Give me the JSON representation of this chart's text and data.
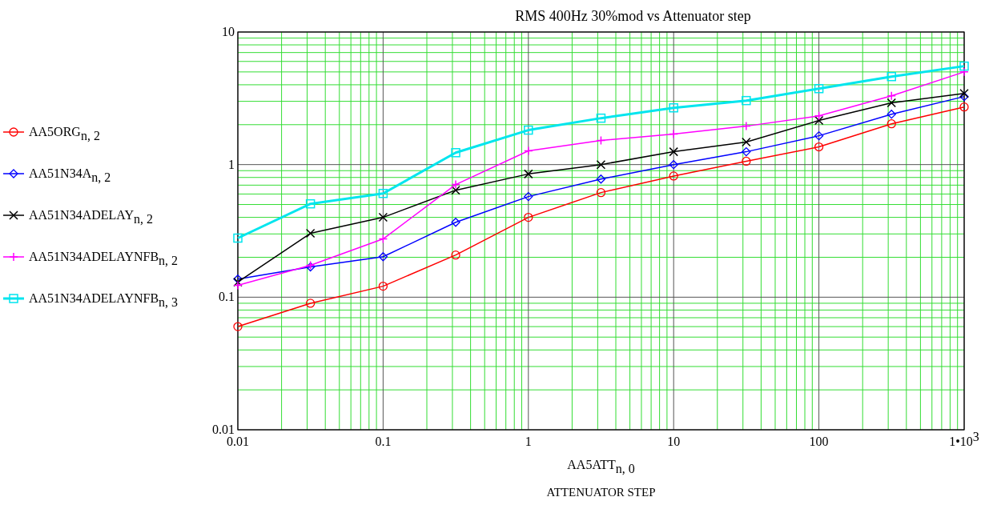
{
  "chart_data": {
    "type": "line",
    "title": "RMS 400Hz 30%mod vs Attenuator step",
    "xlabel": "AA5ATT$_{n, 0}$\nATTENUATOR STEP",
    "log": "xy",
    "grid": true,
    "legend": "left",
    "x": [
      0.01,
      0.0316,
      0.1,
      0.316,
      1,
      3.16,
      10,
      31.6,
      100,
      316,
      1000
    ],
    "xlim": [
      0.01,
      1000
    ],
    "xticks": [
      0.01,
      {
        "value": 0.02,
        "label": null
      },
      {
        "value": 0.03,
        "label": null
      },
      {
        "value": 0.04,
        "label": null
      },
      {
        "value": 0.05,
        "label": null
      },
      {
        "value": 0.06,
        "label": null
      },
      {
        "value": 0.07,
        "label": null
      },
      {
        "value": 0.08,
        "label": null
      },
      {
        "value": 0.09,
        "label": null
      },
      0.1,
      {
        "value": 0.2,
        "label": null
      },
      {
        "value": 0.3,
        "label": null
      },
      {
        "value": 0.4,
        "label": null
      },
      {
        "value": 0.5,
        "label": null
      },
      {
        "value": 0.6,
        "label": null
      },
      {
        "value": 0.7,
        "label": null
      },
      {
        "value": 0.8,
        "label": null
      },
      {
        "value": 0.9,
        "label": null
      },
      1,
      {
        "value": 2,
        "label": null
      },
      {
        "value": 3,
        "label": null
      },
      {
        "value": 4,
        "label": null
      },
      {
        "value": 5,
        "label": null
      },
      {
        "value": 6,
        "label": null
      },
      {
        "value": 7,
        "label": null
      },
      {
        "value": 8,
        "label": null
      },
      {
        "value": 9,
        "label": null
      },
      10,
      {
        "value": 20,
        "label": null
      },
      {
        "value": 30,
        "label": null
      },
      {
        "value": 40,
        "label": null
      },
      {
        "value": 50,
        "label": null
      },
      {
        "value": 60,
        "label": null
      },
      {
        "value": 70,
        "label": null
      },
      {
        "value": 80,
        "label": null
      },
      {
        "value": 90,
        "label": null
      },
      100,
      {
        "value": 200,
        "label": null
      },
      {
        "value": 300,
        "label": null
      },
      {
        "value": 400,
        "label": null
      },
      {
        "value": 500,
        "label": null
      },
      {
        "value": 600,
        "label": null
      },
      {
        "value": 700,
        "label": null
      },
      {
        "value": 800,
        "label": null
      },
      {
        "value": 900,
        "label": null
      },
      {
        "value": 1000,
        "label": "1•10$^{3}$"
      }
    ],
    "ylim": [
      0.01,
      10
    ],
    "yticks": [
      0.01,
      {
        "value": 0.02,
        "label": null
      },
      {
        "value": 0.03,
        "label": null
      },
      {
        "value": 0.04,
        "label": null
      },
      {
        "value": 0.05,
        "label": null
      },
      {
        "value": 0.06,
        "label": null
      },
      {
        "value": 0.07,
        "label": null
      },
      {
        "value": 0.08,
        "label": null
      },
      {
        "value": 0.09,
        "label": null
      },
      0.1,
      {
        "value": 0.2,
        "label": null
      },
      {
        "value": 0.3,
        "label": null
      },
      {
        "value": 0.4,
        "label": null
      },
      {
        "value": 0.5,
        "label": null
      },
      {
        "value": 0.6,
        "label": null
      },
      {
        "value": 0.7,
        "label": null
      },
      {
        "value": 0.8,
        "label": null
      },
      {
        "value": 0.9,
        "label": null
      },
      1,
      {
        "value": 2,
        "label": null
      },
      {
        "value": 3,
        "label": null
      },
      {
        "value": 4,
        "label": null
      },
      {
        "value": 5,
        "label": null
      },
      {
        "value": 6,
        "label": null
      },
      {
        "value": 7,
        "label": null
      },
      {
        "value": 8,
        "label": null
      },
      {
        "value": 9,
        "label": null
      },
      10
    ],
    "series": [
      {
        "name": "AA5ORG$_{n, 2}$",
        "color": "#ff0000",
        "marker": "circle",
        "values": [
          0.06,
          0.09,
          0.121,
          0.208,
          0.4,
          0.615,
          0.82,
          1.06,
          1.36,
          2.03,
          2.72
        ]
      },
      {
        "name": "AA51N34A$_{n, 2}$",
        "color": "#0000ff",
        "marker": "diamond",
        "values": [
          0.137,
          0.169,
          0.202,
          0.367,
          0.574,
          0.778,
          1.0,
          1.25,
          1.65,
          2.4,
          3.26
        ]
      },
      {
        "name": "AA51N34ADELAY$_{n, 2}$",
        "color": "#000000",
        "marker": "cross",
        "values": [
          0.13,
          0.303,
          0.4,
          0.641,
          0.85,
          1.0,
          1.25,
          1.48,
          2.15,
          2.92,
          3.44
        ]
      },
      {
        "name": "AA51N34ADELAYNFB$_{n, 2}$",
        "color": "#ff00ff",
        "marker": "plus",
        "values": [
          0.123,
          0.174,
          0.275,
          0.707,
          1.27,
          1.52,
          1.7,
          1.95,
          2.33,
          3.3,
          5.0
        ]
      },
      {
        "name": "AA51N34ADELAYNFB$_{n, 3}$",
        "color": "#00e5ee",
        "marker": "square",
        "values": [
          0.279,
          0.506,
          0.606,
          1.23,
          1.82,
          2.24,
          2.68,
          3.04,
          3.74,
          4.61,
          5.53
        ]
      }
    ]
  }
}
